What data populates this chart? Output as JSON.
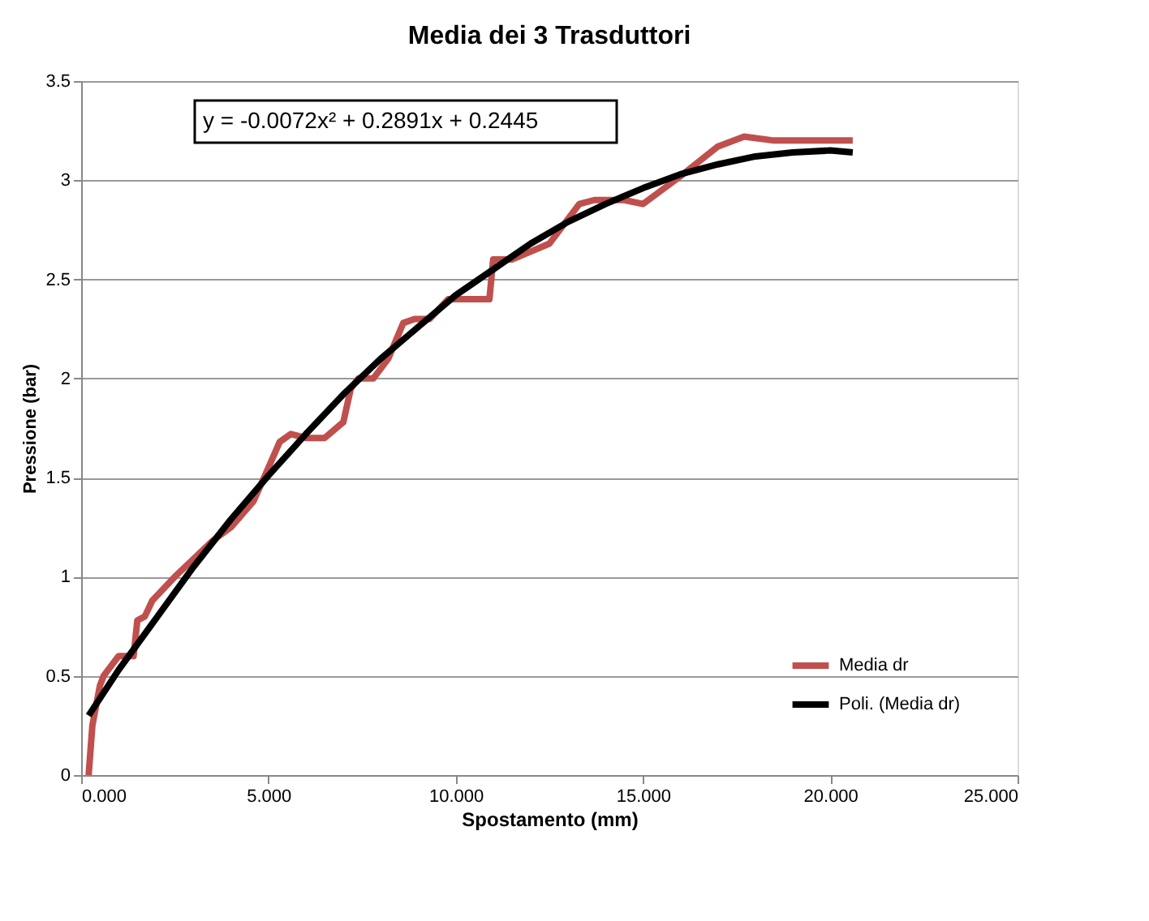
{
  "chart_data": {
    "type": "line",
    "title": "Media dei 3 Trasduttori",
    "xlabel": "Spostamento  (mm)",
    "ylabel": "Pressione (bar)",
    "annotations": [
      "y = -0.0072x² + 0.2891x + 0.2445"
    ],
    "xlim": [
      0,
      25
    ],
    "xticks": [
      {
        "value": 0,
        "label": "0.000"
      },
      {
        "value": 5,
        "label": "5.000"
      },
      {
        "value": 10,
        "label": "10.000"
      },
      {
        "value": 15,
        "label": "15.000"
      },
      {
        "value": 20,
        "label": "20.000"
      },
      {
        "value": 25,
        "label": "25.000"
      }
    ],
    "ylim": [
      0,
      3.5
    ],
    "yticks": [
      0,
      0.5,
      1,
      1.5,
      2,
      2.5,
      3,
      3.5
    ],
    "grid": "y",
    "legend": "bottom right",
    "marker": "none",
    "line_style": "solid",
    "series": [
      {
        "name": "Media dr",
        "color": "#c0504d",
        "x": [
          0.2,
          0.3,
          0.5,
          0.6,
          1.0,
          1.4,
          1.5,
          1.7,
          1.9,
          2.5,
          3.5,
          4.0,
          4.6,
          5.0,
          5.3,
          5.6,
          6.0,
          6.5,
          7.0,
          7.2,
          7.4,
          7.8,
          8.2,
          8.6,
          8.9,
          9.3,
          9.8,
          10.9,
          11.0,
          11.5,
          12.5,
          13.3,
          13.7,
          14.5,
          15.0,
          16.0,
          17.0,
          17.7,
          18.5,
          20.6
        ],
        "values": [
          0,
          0.25,
          0.45,
          0.5,
          0.6,
          0.6,
          0.78,
          0.8,
          0.88,
          1.0,
          1.18,
          1.25,
          1.38,
          1.55,
          1.68,
          1.72,
          1.7,
          1.7,
          1.78,
          1.95,
          2.0,
          2.0,
          2.1,
          2.28,
          2.3,
          2.3,
          2.4,
          2.4,
          2.6,
          2.6,
          2.68,
          2.88,
          2.9,
          2.9,
          2.88,
          3.02,
          3.17,
          3.22,
          3.2,
          3.2
        ]
      },
      {
        "name": "Poli. (Media dr)",
        "color": "#000000",
        "x": [
          0.2,
          1,
          2,
          3,
          4,
          5,
          6,
          7,
          8,
          9,
          10,
          11,
          12,
          13,
          14,
          15,
          16,
          17,
          18,
          19,
          20,
          20.6
        ],
        "values": [
          0.3,
          0.53,
          0.79,
          1.05,
          1.29,
          1.51,
          1.72,
          1.92,
          2.1,
          2.26,
          2.42,
          2.55,
          2.68,
          2.79,
          2.88,
          2.96,
          3.03,
          3.08,
          3.12,
          3.14,
          3.15,
          3.14
        ]
      }
    ]
  }
}
